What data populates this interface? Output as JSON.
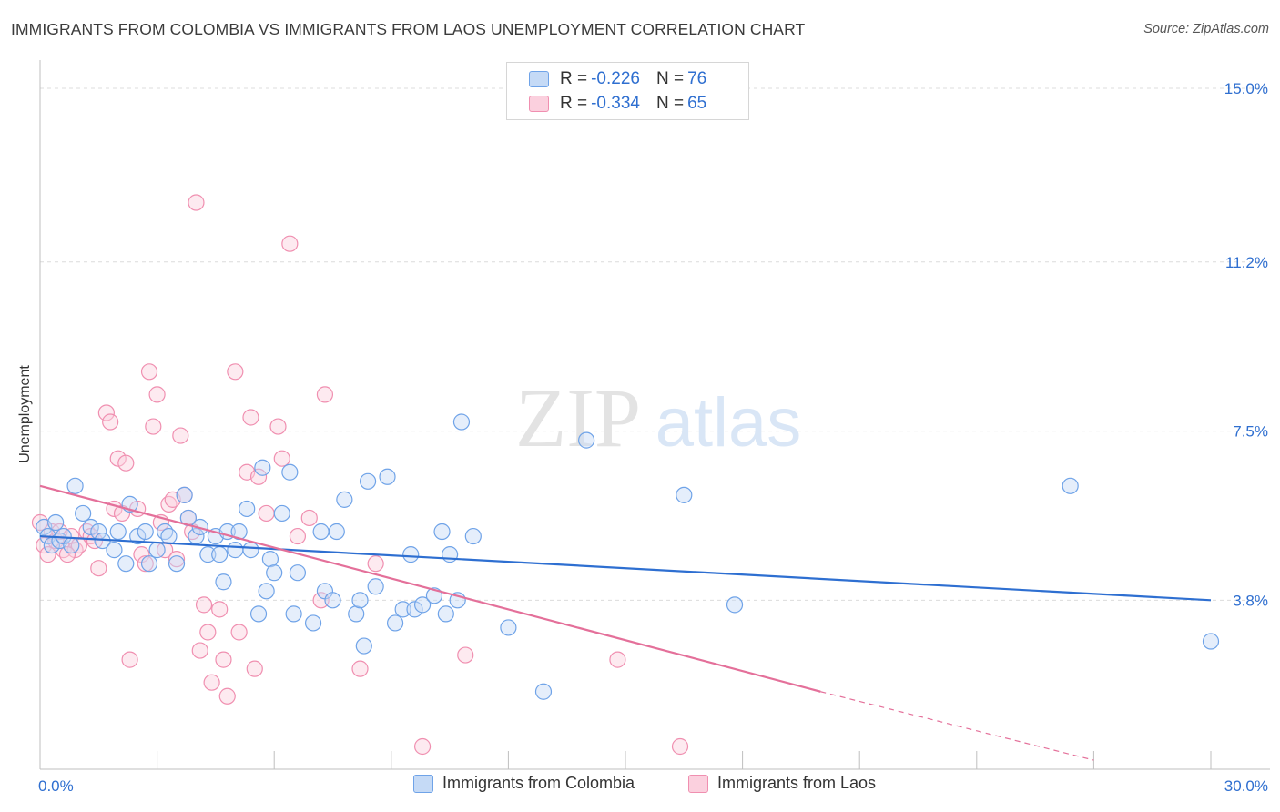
{
  "header": {
    "title": "IMMIGRANTS FROM COLOMBIA VS IMMIGRANTS FROM LAOS UNEMPLOYMENT CORRELATION CHART",
    "source": "Source: ZipAtlas.com"
  },
  "watermark": {
    "zip": "ZIP",
    "atlas": "atlas"
  },
  "legend_top": [
    {
      "r_label": "R =",
      "r_value": "-0.226",
      "n_label": "N =",
      "n_value": "76",
      "color": "#6fa3e8"
    },
    {
      "r_label": "R =",
      "r_value": "-0.334",
      "n_label": "N =",
      "n_value": "65",
      "color": "#f08fb0"
    }
  ],
  "chart_data": {
    "type": "scatter",
    "title": "IMMIGRANTS FROM COLOMBIA VS IMMIGRANTS FROM LAOS UNEMPLOYMENT CORRELATION CHART",
    "xlabel": "",
    "ylabel": "Unemployment",
    "xlim": [
      0,
      30
    ],
    "ylim": [
      0.6,
      15.0
    ],
    "x_tick_labels": [
      "0.0%",
      "30.0%"
    ],
    "y_ticks": [
      3.8,
      7.5,
      11.2,
      15.0
    ],
    "y_tick_labels": [
      "3.8%",
      "7.5%",
      "11.2%",
      "15.0%"
    ],
    "grid": true,
    "legend_position": "bottom-center",
    "series": [
      {
        "name": "Immigrants from Colombia",
        "color": "#6fa3e8",
        "trend": {
          "x": [
            0,
            30
          ],
          "y": [
            5.2,
            3.8
          ],
          "dashed_from": null
        },
        "points": [
          [
            0.1,
            5.4
          ],
          [
            0.2,
            5.2
          ],
          [
            0.3,
            5.0
          ],
          [
            0.5,
            5.1
          ],
          [
            0.6,
            5.2
          ],
          [
            0.9,
            6.3
          ],
          [
            1.1,
            5.7
          ],
          [
            1.3,
            5.4
          ],
          [
            1.5,
            5.3
          ],
          [
            1.6,
            5.1
          ],
          [
            1.9,
            4.9
          ],
          [
            2.0,
            5.3
          ],
          [
            2.2,
            4.6
          ],
          [
            2.3,
            5.9
          ],
          [
            2.5,
            5.2
          ],
          [
            2.7,
            5.3
          ],
          [
            2.8,
            4.6
          ],
          [
            3.0,
            4.9
          ],
          [
            3.2,
            5.3
          ],
          [
            3.3,
            5.2
          ],
          [
            3.5,
            4.6
          ],
          [
            3.7,
            6.1
          ],
          [
            3.8,
            5.6
          ],
          [
            4.0,
            5.2
          ],
          [
            4.1,
            5.4
          ],
          [
            4.3,
            4.8
          ],
          [
            4.5,
            5.2
          ],
          [
            4.6,
            4.8
          ],
          [
            4.7,
            4.2
          ],
          [
            4.8,
            5.3
          ],
          [
            5.0,
            4.9
          ],
          [
            5.1,
            5.3
          ],
          [
            5.3,
            5.8
          ],
          [
            5.4,
            4.9
          ],
          [
            5.6,
            3.5
          ],
          [
            5.7,
            6.7
          ],
          [
            5.8,
            4.0
          ],
          [
            5.9,
            4.7
          ],
          [
            6.0,
            4.4
          ],
          [
            6.2,
            5.7
          ],
          [
            6.4,
            6.6
          ],
          [
            6.5,
            3.5
          ],
          [
            6.6,
            4.4
          ],
          [
            7.0,
            3.3
          ],
          [
            7.2,
            5.3
          ],
          [
            7.3,
            4.0
          ],
          [
            7.5,
            3.8
          ],
          [
            7.6,
            5.3
          ],
          [
            7.8,
            6.0
          ],
          [
            8.1,
            3.5
          ],
          [
            8.2,
            3.8
          ],
          [
            8.3,
            2.8
          ],
          [
            8.4,
            6.4
          ],
          [
            8.6,
            4.1
          ],
          [
            8.9,
            6.5
          ],
          [
            9.1,
            3.3
          ],
          [
            9.3,
            3.6
          ],
          [
            9.5,
            4.8
          ],
          [
            9.6,
            3.6
          ],
          [
            9.8,
            3.7
          ],
          [
            10.1,
            3.9
          ],
          [
            10.3,
            5.3
          ],
          [
            10.4,
            3.5
          ],
          [
            10.5,
            4.8
          ],
          [
            10.7,
            3.8
          ],
          [
            10.8,
            7.7
          ],
          [
            11.1,
            5.2
          ],
          [
            12.0,
            3.2
          ],
          [
            12.9,
            1.8
          ],
          [
            14.0,
            7.3
          ],
          [
            16.5,
            6.1
          ],
          [
            17.8,
            3.7
          ],
          [
            26.4,
            6.3
          ],
          [
            30.0,
            2.9
          ],
          [
            0.4,
            5.5
          ],
          [
            0.8,
            5.0
          ]
        ]
      },
      {
        "name": "Immigrants from Laos",
        "color": "#f08fb0",
        "trend": {
          "x": [
            0,
            20
          ],
          "y": [
            6.3,
            1.8
          ],
          "dashed_from": 20,
          "dashed_x": [
            20,
            27
          ],
          "dashed_y": [
            1.8,
            0.3
          ]
        },
        "points": [
          [
            0.0,
            5.5
          ],
          [
            0.1,
            5.0
          ],
          [
            0.2,
            4.8
          ],
          [
            0.3,
            5.3
          ],
          [
            0.4,
            5.1
          ],
          [
            0.5,
            5.3
          ],
          [
            0.6,
            4.9
          ],
          [
            0.8,
            5.2
          ],
          [
            0.9,
            4.9
          ],
          [
            1.0,
            5.0
          ],
          [
            1.2,
            5.3
          ],
          [
            1.3,
            5.2
          ],
          [
            1.4,
            5.1
          ],
          [
            1.5,
            4.5
          ],
          [
            1.7,
            7.9
          ],
          [
            1.8,
            7.7
          ],
          [
            1.9,
            5.8
          ],
          [
            2.0,
            6.9
          ],
          [
            2.1,
            5.7
          ],
          [
            2.2,
            6.8
          ],
          [
            2.3,
            2.5
          ],
          [
            2.5,
            5.8
          ],
          [
            2.6,
            4.8
          ],
          [
            2.7,
            4.6
          ],
          [
            2.8,
            8.8
          ],
          [
            2.9,
            7.6
          ],
          [
            3.0,
            8.3
          ],
          [
            3.1,
            5.5
          ],
          [
            3.2,
            4.9
          ],
          [
            3.3,
            5.9
          ],
          [
            3.4,
            6.0
          ],
          [
            3.5,
            4.7
          ],
          [
            3.6,
            7.4
          ],
          [
            3.7,
            6.1
          ],
          [
            3.8,
            5.6
          ],
          [
            3.9,
            5.3
          ],
          [
            4.0,
            12.5
          ],
          [
            4.1,
            2.7
          ],
          [
            4.2,
            3.7
          ],
          [
            4.3,
            3.1
          ],
          [
            4.4,
            2.0
          ],
          [
            4.6,
            3.6
          ],
          [
            4.7,
            2.5
          ],
          [
            4.8,
            1.7
          ],
          [
            5.0,
            8.8
          ],
          [
            5.1,
            3.1
          ],
          [
            5.3,
            6.6
          ],
          [
            5.4,
            7.8
          ],
          [
            5.5,
            2.3
          ],
          [
            5.6,
            6.5
          ],
          [
            5.8,
            5.7
          ],
          [
            6.1,
            7.6
          ],
          [
            6.2,
            6.9
          ],
          [
            6.4,
            11.6
          ],
          [
            6.6,
            5.2
          ],
          [
            6.9,
            5.6
          ],
          [
            7.2,
            3.8
          ],
          [
            7.3,
            8.3
          ],
          [
            8.2,
            2.3
          ],
          [
            8.6,
            4.6
          ],
          [
            9.8,
            0.6
          ],
          [
            10.9,
            2.6
          ],
          [
            14.8,
            2.5
          ],
          [
            16.4,
            0.6
          ],
          [
            0.7,
            4.8
          ]
        ]
      }
    ]
  },
  "bottom_legend": [
    {
      "label": "Immigrants from Colombia",
      "color": "#6fa3e8"
    },
    {
      "label": "Immigrants from Laos",
      "color": "#f08fb0"
    }
  ]
}
